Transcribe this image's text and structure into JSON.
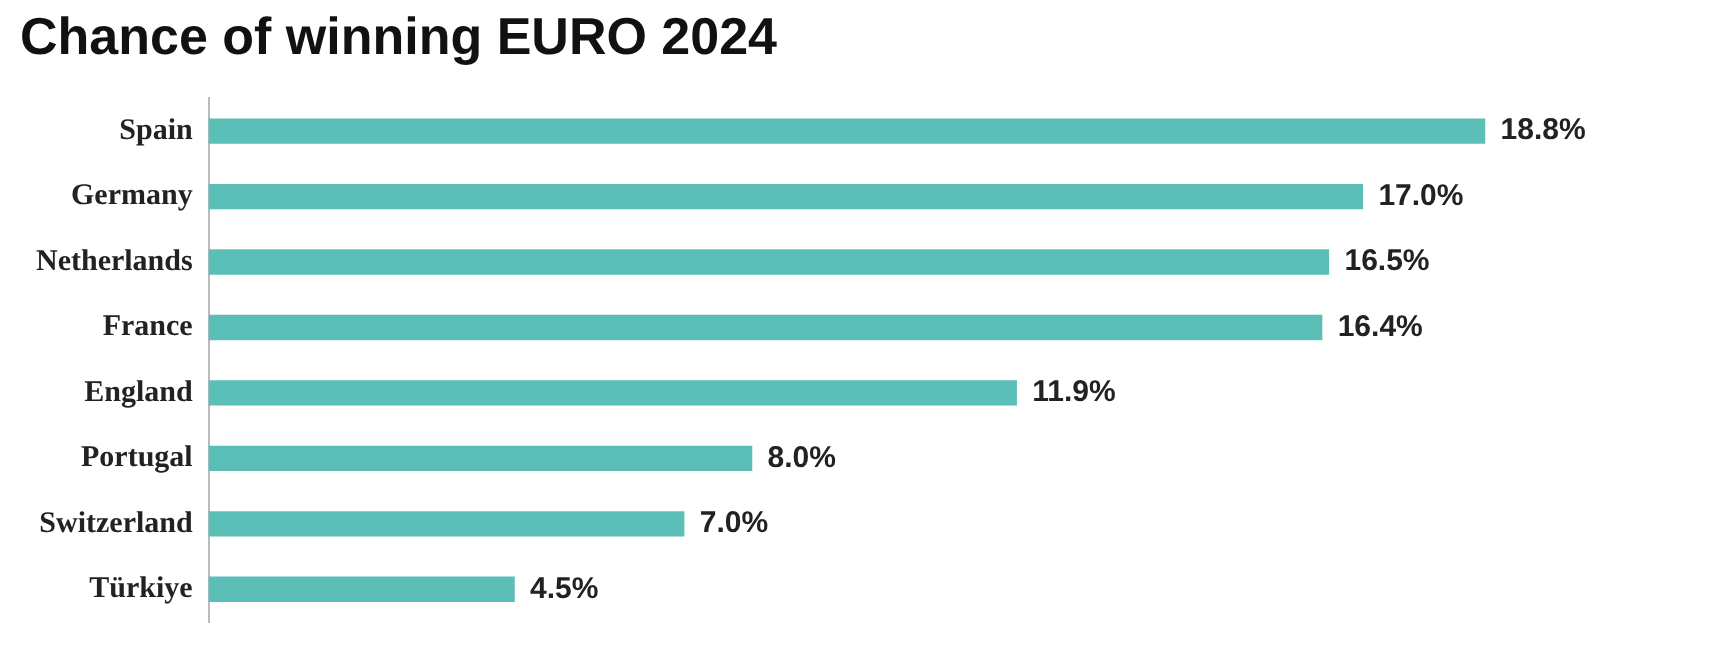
{
  "chart_data": {
    "type": "bar",
    "orientation": "horizontal",
    "title": "Chance of winning EURO 2024",
    "categories": [
      "Spain",
      "Germany",
      "Netherlands",
      "France",
      "England",
      "Portugal",
      "Switzerland",
      "Türkiye"
    ],
    "values": [
      18.8,
      17.0,
      16.5,
      16.4,
      11.9,
      8.0,
      7.0,
      4.5
    ],
    "value_labels": [
      "18.8%",
      "17.0%",
      "16.5%",
      "16.4%",
      "11.9%",
      "8.0%",
      "7.0%",
      "4.5%"
    ],
    "color": "#5bbfb8",
    "legend": false,
    "grid": false,
    "tick_labels": "y"
  }
}
